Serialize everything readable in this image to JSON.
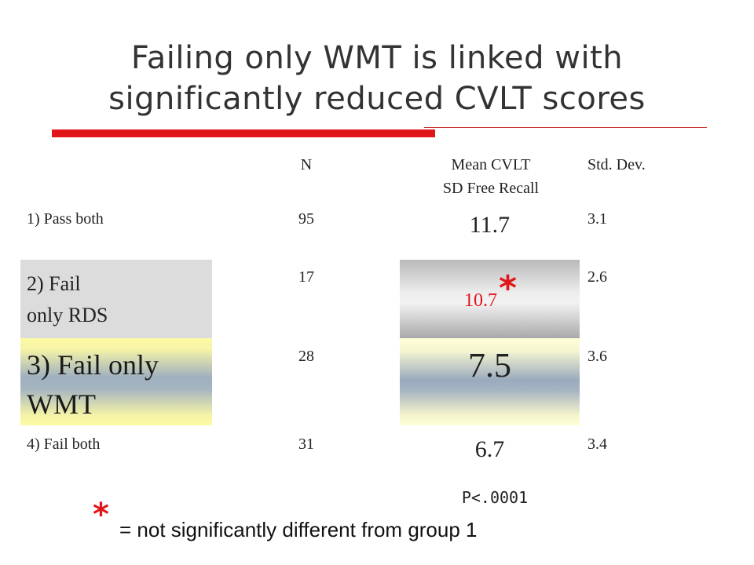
{
  "slide": {
    "title_line1": "Failing only WMT is linked with",
    "title_line2": "significantly reduced CVLT scores"
  },
  "table": {
    "headers": {
      "n": "N",
      "mean_line1": "Mean CVLT",
      "mean_line2": "SD Free Recall",
      "std": "Std. Dev."
    },
    "rows": [
      {
        "label": "1) Pass both",
        "n": "95",
        "mean": "11.7",
        "std": "3.1"
      },
      {
        "label_line1": "2) Fail",
        "label_line2": "only RDS",
        "n": "17",
        "mean": "10.7",
        "mean_marker": "*",
        "std": "2.6"
      },
      {
        "label_line1": "3) Fail only",
        "label_line2": "WMT",
        "n": "28",
        "mean": "7.5",
        "std": "3.6"
      },
      {
        "label": "4) Fail both",
        "n": "31",
        "mean": "6.7",
        "std": "3.4"
      }
    ],
    "p_value": "P<.0001"
  },
  "footnote": {
    "marker": "*",
    "text": "= not significantly different from group 1"
  },
  "colors": {
    "accent_red": "#e0161b",
    "highlight_gray": "#dcdcdc",
    "highlight_yellow": "#fdfba5",
    "highlight_blue_gray": "#9fb0bf"
  }
}
